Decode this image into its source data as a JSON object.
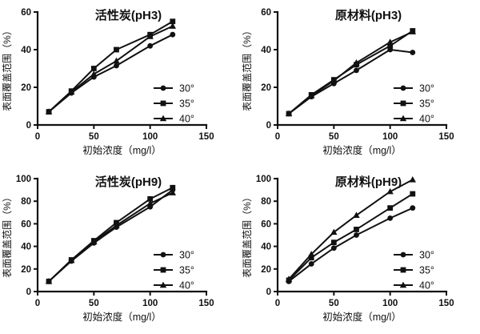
{
  "page": {
    "background": "#ffffff"
  },
  "style": {
    "line_color": "#111111",
    "text_color": "#111111",
    "axis_color": "#111111"
  },
  "chart_data": [
    {
      "id": "activated-carbon-ph3",
      "type": "line",
      "title": "活性炭(pH3)",
      "xlabel": "初始浓度（mg/l）",
      "ylabel": "表面覆盖范围（%）",
      "xlim": [
        0,
        150
      ],
      "ylim": [
        0,
        60
      ],
      "xticks": [
        0,
        50,
        100,
        150
      ],
      "yticks": [
        0,
        20,
        40,
        60
      ],
      "grid": false,
      "legend_position": "inside-right-lower",
      "x": [
        10,
        30,
        50,
        70,
        100,
        120
      ],
      "series": [
        {
          "name": "30°",
          "marker": "circle",
          "values": [
            7,
            17,
            25.5,
            31.5,
            42,
            48
          ]
        },
        {
          "name": "35°",
          "marker": "square",
          "values": [
            7,
            18,
            30,
            40,
            48,
            55
          ]
        },
        {
          "name": "40°",
          "marker": "triangle",
          "values": [
            7,
            17.5,
            27,
            34,
            47,
            52.5
          ]
        }
      ]
    },
    {
      "id": "raw-material-ph3",
      "type": "line",
      "title": "原材料(pH3)",
      "xlabel": "初始浓度（mg/l）",
      "ylabel": "表面覆盖范围（%）",
      "xlim": [
        0,
        150
      ],
      "ylim": [
        0,
        60
      ],
      "xticks": [
        0,
        50,
        100,
        150
      ],
      "yticks": [
        0,
        20,
        40,
        60
      ],
      "grid": false,
      "legend_position": "inside-right-lower",
      "x": [
        10,
        30,
        50,
        70,
        100,
        120
      ],
      "series": [
        {
          "name": "30°",
          "marker": "circle",
          "values": [
            6,
            15,
            22,
            29,
            40,
            38.5
          ]
        },
        {
          "name": "35°",
          "marker": "square",
          "values": [
            6,
            16,
            24,
            32,
            42,
            50
          ]
        },
        {
          "name": "40°",
          "marker": "triangle",
          "values": [
            6,
            15.5,
            23.5,
            33,
            44,
            49.5
          ]
        }
      ]
    },
    {
      "id": "activated-carbon-ph9",
      "type": "line",
      "title": "活性炭(pH9)",
      "xlabel": "初始浓度（mg/l）",
      "ylabel": "表面覆盖范围（%）",
      "xlim": [
        0,
        150
      ],
      "ylim": [
        0,
        100
      ],
      "xticks": [
        0,
        50,
        100,
        150
      ],
      "yticks": [
        0,
        20,
        40,
        60,
        80,
        100
      ],
      "grid": false,
      "legend_position": "inside-right-lower",
      "x": [
        10,
        30,
        50,
        70,
        100,
        120
      ],
      "series": [
        {
          "name": "30°",
          "marker": "circle",
          "values": [
            9,
            27,
            43,
            57,
            75,
            90
          ]
        },
        {
          "name": "35°",
          "marker": "square",
          "values": [
            9,
            28,
            45,
            61,
            82,
            92
          ]
        },
        {
          "name": "40°",
          "marker": "triangle",
          "values": [
            9,
            27.5,
            44,
            58.5,
            78,
            87.5
          ]
        }
      ]
    },
    {
      "id": "raw-material-ph9",
      "type": "line",
      "title": "原材料(pH9)",
      "xlabel": "初始浓度（mg/l）",
      "ylabel": "表面覆盖范围（%）",
      "xlim": [
        0,
        150
      ],
      "ylim": [
        0,
        100
      ],
      "xticks": [
        0,
        50,
        100,
        150
      ],
      "yticks": [
        0,
        20,
        40,
        60,
        80,
        100
      ],
      "grid": false,
      "legend_position": "inside-right-lower",
      "x": [
        10,
        30,
        50,
        70,
        100,
        120
      ],
      "series": [
        {
          "name": "30°",
          "marker": "circle",
          "values": [
            9,
            24.5,
            38.5,
            50,
            65,
            74
          ]
        },
        {
          "name": "35°",
          "marker": "square",
          "values": [
            10,
            30,
            43.5,
            55,
            74,
            86.5
          ]
        },
        {
          "name": "40°",
          "marker": "triangle",
          "values": [
            11,
            33,
            52.5,
            67.5,
            88.5,
            99
          ]
        }
      ]
    }
  ]
}
